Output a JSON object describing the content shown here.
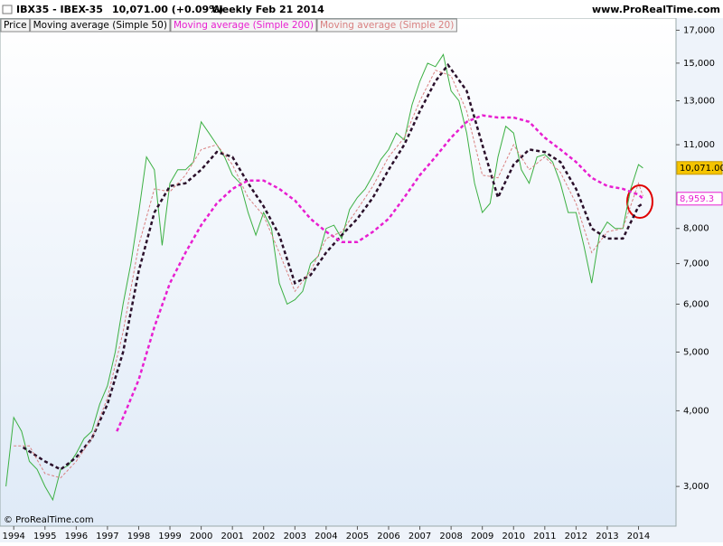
{
  "header": {
    "symbol": "IBX35 - IBEX-35",
    "quote": "10,071.00 (+0.09%)",
    "period": "Weekly  Feb 21 2014",
    "site": "www.ProRealTime.com",
    "copyright": "© ProRealTime.com"
  },
  "chart_data": {
    "type": "line",
    "log_scale": true,
    "grid": false,
    "xlim": [
      1993.56,
      2015.2
    ],
    "ylim": [
      2580,
      17500
    ],
    "xticks": [
      1994,
      1995,
      1996,
      1997,
      1998,
      1999,
      2000,
      2001,
      2002,
      2003,
      2004,
      2005,
      2006,
      2007,
      2008,
      2009,
      2010,
      2011,
      2012,
      2013,
      2014
    ],
    "yticks": [
      {
        "value": 3000,
        "label": "3,000"
      },
      {
        "value": 4000,
        "label": "4,000"
      },
      {
        "value": 5000,
        "label": "5,000"
      },
      {
        "value": 6000,
        "label": "6,000"
      },
      {
        "value": 7000,
        "label": "7,000"
      },
      {
        "value": 8000,
        "label": "8,000"
      },
      {
        "value": 11000,
        "label": "11,000"
      },
      {
        "value": 13000,
        "label": "13,000"
      },
      {
        "value": 15000,
        "label": "15,000"
      },
      {
        "value": 17000,
        "label": "17,000"
      }
    ],
    "series": [
      {
        "name": "Price",
        "color": "#3cb043",
        "last_label": "10,071.00",
        "x": [
          1993.75,
          1994.0,
          1994.25,
          1994.5,
          1994.75,
          1995.0,
          1995.25,
          1995.5,
          1995.75,
          1996.0,
          1996.25,
          1996.5,
          1996.75,
          1997.0,
          1997.25,
          1997.5,
          1997.75,
          1998.0,
          1998.25,
          1998.5,
          1998.75,
          1999.0,
          1999.25,
          1999.5,
          1999.75,
          2000.0,
          2000.25,
          2000.5,
          2000.75,
          2001.0,
          2001.25,
          2001.5,
          2001.75,
          2002.0,
          2002.25,
          2002.5,
          2002.75,
          2003.0,
          2003.25,
          2003.5,
          2003.75,
          2004.0,
          2004.25,
          2004.5,
          2004.75,
          2005.0,
          2005.25,
          2005.5,
          2005.75,
          2006.0,
          2006.25,
          2006.5,
          2006.75,
          2007.0,
          2007.25,
          2007.5,
          2007.75,
          2008.0,
          2008.25,
          2008.5,
          2008.75,
          2009.0,
          2009.25,
          2009.5,
          2009.75,
          2010.0,
          2010.25,
          2010.5,
          2010.75,
          2011.0,
          2011.25,
          2011.5,
          2011.75,
          2012.0,
          2012.25,
          2012.5,
          2012.75,
          2013.0,
          2013.25,
          2013.5,
          2013.75,
          2014.0,
          2014.14
        ],
        "values": [
          3000,
          3900,
          3700,
          3300,
          3200,
          3000,
          2850,
          3200,
          3250,
          3400,
          3600,
          3700,
          4100,
          4400,
          5000,
          6000,
          7000,
          8500,
          10500,
          10000,
          7500,
          9500,
          10000,
          10000,
          10300,
          12000,
          11500,
          11000,
          10500,
          9800,
          9500,
          8500,
          7800,
          8500,
          8000,
          6500,
          6000,
          6100,
          6300,
          7000,
          7200,
          8000,
          8100,
          7700,
          8600,
          9000,
          9300,
          9800,
          10400,
          10800,
          11500,
          11200,
          12800,
          14000,
          15000,
          14800,
          15500,
          13500,
          13000,
          11500,
          9500,
          8500,
          8800,
          10500,
          11800,
          11500,
          10000,
          9500,
          10500,
          10600,
          10300,
          9500,
          8500,
          8500,
          7500,
          6500,
          7800,
          8200,
          8000,
          8000,
          9300,
          10200,
          10071
        ]
      },
      {
        "name": "Moving average (Simple 50)",
        "color": "#2a0f2a",
        "x": [
          1994.3,
          1995.0,
          1995.5,
          1996.0,
          1996.5,
          1997.0,
          1997.5,
          1998.0,
          1998.5,
          1999.0,
          1999.5,
          2000.0,
          2000.5,
          2001.0,
          2001.5,
          2002.0,
          2002.5,
          2003.0,
          2003.5,
          2004.0,
          2004.5,
          2005.0,
          2005.5,
          2006.0,
          2006.5,
          2007.0,
          2007.5,
          2007.9,
          2008.5,
          2009.0,
          2009.5,
          2010.0,
          2010.5,
          2011.0,
          2011.5,
          2012.0,
          2012.5,
          2013.0,
          2013.5,
          2014.0,
          2014.14
        ],
        "values": [
          3480,
          3300,
          3200,
          3350,
          3600,
          4100,
          5000,
          6800,
          8500,
          9400,
          9500,
          10000,
          10700,
          10500,
          9500,
          8700,
          7800,
          6500,
          6700,
          7300,
          7800,
          8300,
          9000,
          10000,
          11000,
          12500,
          14000,
          14900,
          13500,
          11000,
          9000,
          10200,
          10800,
          10700,
          10300,
          9300,
          8000,
          7700,
          7700,
          8700,
          8800
        ]
      },
      {
        "name": "Moving average (Simple 200)",
        "color": "#e81fd0",
        "last_label": "8,959.3",
        "x": [
          1997.3,
          1997.5,
          1998.0,
          1998.5,
          1999.0,
          1999.5,
          2000.0,
          2000.5,
          2001.0,
          2001.5,
          2002.0,
          2002.5,
          2003.0,
          2003.5,
          2004.0,
          2004.5,
          2005.0,
          2005.5,
          2006.0,
          2006.5,
          2007.0,
          2007.5,
          2008.0,
          2008.5,
          2009.0,
          2009.5,
          2010.0,
          2010.5,
          2011.0,
          2011.5,
          2012.0,
          2012.5,
          2013.0,
          2013.5,
          2014.0,
          2014.14
        ],
        "values": [
          3700,
          3900,
          4500,
          5500,
          6500,
          7300,
          8100,
          8800,
          9300,
          9600,
          9600,
          9300,
          8900,
          8300,
          7900,
          7600,
          7600,
          7900,
          8300,
          9000,
          9800,
          10500,
          11300,
          12000,
          12300,
          12200,
          12200,
          12000,
          11300,
          10800,
          10300,
          9700,
          9400,
          9300,
          9100,
          8959.3
        ]
      },
      {
        "name": "Moving average (Simple 20)",
        "color": "#d98080",
        "x": [
          1994.0,
          1994.5,
          1995.0,
          1995.5,
          1996.0,
          1996.5,
          1997.0,
          1997.5,
          1998.0,
          1998.5,
          1999.0,
          1999.5,
          2000.0,
          2000.5,
          2001.0,
          2001.5,
          2002.0,
          2002.5,
          2003.0,
          2003.5,
          2004.0,
          2004.5,
          2005.0,
          2005.5,
          2006.0,
          2006.5,
          2007.0,
          2007.5,
          2008.0,
          2008.5,
          2009.0,
          2009.5,
          2010.0,
          2010.5,
          2011.0,
          2011.5,
          2012.0,
          2012.5,
          2013.0,
          2013.5,
          2014.0,
          2014.14
        ],
        "values": [
          3500,
          3500,
          3150,
          3100,
          3300,
          3600,
          4200,
          5400,
          7500,
          9300,
          9200,
          9800,
          10800,
          11000,
          10200,
          9000,
          8400,
          7300,
          6300,
          6800,
          7700,
          7900,
          8600,
          9400,
          10500,
          11300,
          13000,
          14600,
          14300,
          12500,
          9800,
          9700,
          11000,
          10000,
          10500,
          9900,
          8800,
          7300,
          7900,
          8000,
          9500,
          9050
        ]
      }
    ]
  }
}
